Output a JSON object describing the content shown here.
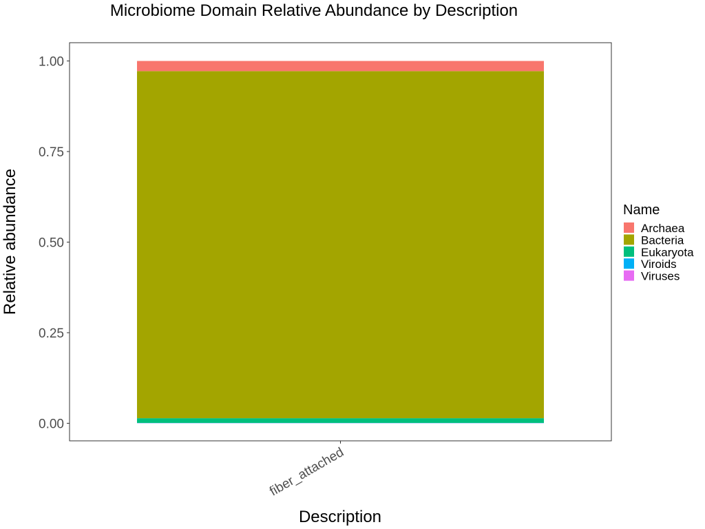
{
  "chart_data": {
    "type": "bar",
    "stacked": true,
    "title": "Microbiome Domain Relative Abundance by Description",
    "xlabel": "Description",
    "ylabel": "Relative abundance",
    "categories": [
      "fiber_attached"
    ],
    "ylim": [
      0,
      1
    ],
    "yticks": [
      0,
      0.25,
      0.5,
      0.75,
      1
    ],
    "ytick_labels": [
      "0.00",
      "0.25",
      "0.50",
      "0.75",
      "1.00"
    ],
    "grid": false,
    "legend": {
      "title": "Name",
      "position": "right"
    },
    "series": [
      {
        "name": "Archaea",
        "color": "#F8766D",
        "values": [
          0.028
        ]
      },
      {
        "name": "Bacteria",
        "color": "#A3A500",
        "values": [
          0.958
        ]
      },
      {
        "name": "Eukaryota",
        "color": "#00BF7D",
        "values": [
          0.013
        ]
      },
      {
        "name": "Viroids",
        "color": "#00B0F6",
        "values": [
          0.0005
        ]
      },
      {
        "name": "Viruses",
        "color": "#E76BF3",
        "values": [
          0.0005
        ]
      }
    ]
  }
}
